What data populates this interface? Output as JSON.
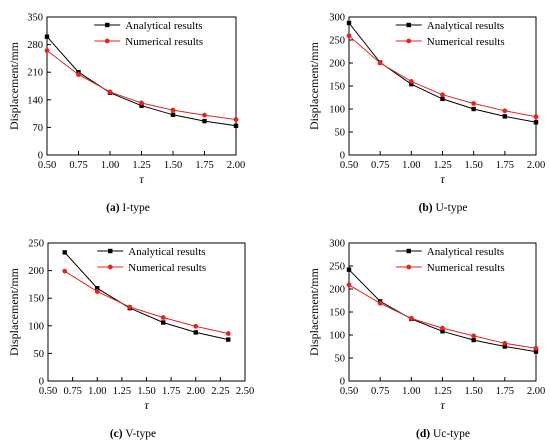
{
  "colors": {
    "analytical": "#000000",
    "numerical": "#e8231e"
  },
  "chart_data": [
    {
      "type": "line",
      "caption_letter": "(a)",
      "caption_text": " I-type",
      "xlabel": "τ",
      "ylabel": "Displacement/mm",
      "xlim": [
        0.5,
        2.0
      ],
      "ylim": [
        0,
        350
      ],
      "xticks": [
        "0.50",
        "0.75",
        "1.00",
        "1.25",
        "1.50",
        "1.75",
        "2.00"
      ],
      "yticks": [
        "0",
        "70",
        "140",
        "210",
        "280",
        "350"
      ],
      "x": [
        0.5,
        0.75,
        1.0,
        1.25,
        1.5,
        1.75,
        2.0
      ],
      "series": [
        {
          "name": "Analytical results",
          "values": [
            300,
            210,
            158,
            125,
            102,
            86,
            74
          ]
        },
        {
          "name": "Numerical results",
          "values": [
            265,
            204,
            160,
            132,
            114,
            101,
            90
          ]
        }
      ],
      "legend": "top-right"
    },
    {
      "type": "line",
      "caption_letter": "(b)",
      "caption_text": " U-type",
      "xlabel": "τ",
      "ylabel": "Displacement/mm",
      "xlim": [
        0.5,
        2.0
      ],
      "ylim": [
        0,
        300
      ],
      "xticks": [
        "0.50",
        "0.75",
        "1.00",
        "1.25",
        "1.50",
        "1.75",
        "2.00"
      ],
      "yticks": [
        "0",
        "50",
        "100",
        "150",
        "200",
        "250",
        "300"
      ],
      "x": [
        0.5,
        0.75,
        1.0,
        1.25,
        1.5,
        1.75,
        2.0
      ],
      "series": [
        {
          "name": "Analytical results",
          "values": [
            287,
            201,
            154,
            122,
            100,
            84,
            71
          ]
        },
        {
          "name": "Numerical results",
          "values": [
            259,
            200,
            160,
            131,
            112,
            96,
            83
          ]
        }
      ],
      "legend": "top-right"
    },
    {
      "type": "line",
      "caption_letter": "(c)",
      "caption_text": " V-type",
      "xlabel": "τ",
      "ylabel": "Displacement/mm",
      "xlim": [
        0.5,
        2.5
      ],
      "ylim": [
        0,
        250
      ],
      "xticks": [
        "0.50",
        "0.75",
        "1.00",
        "1.25",
        "1.50",
        "1.75",
        "2.00",
        "2.25",
        "2.50"
      ],
      "yticks": [
        "0",
        "50",
        "100",
        "150",
        "200",
        "250"
      ],
      "x": [
        0.67,
        1.0,
        1.33,
        1.67,
        2.0,
        2.33
      ],
      "series": [
        {
          "name": "Analytical results",
          "values": [
            233,
            168,
            132,
            106,
            88,
            75
          ]
        },
        {
          "name": "Numerical results",
          "values": [
            199,
            162,
            134,
            115,
            99,
            86
          ]
        }
      ],
      "legend": "top-right"
    },
    {
      "type": "line",
      "caption_letter": "(d)",
      "caption_text": " Uc-type",
      "xlabel": "τ",
      "ylabel": "Displacement/mm",
      "xlim": [
        0.5,
        2.0
      ],
      "ylim": [
        0,
        300
      ],
      "xticks": [
        "0.50",
        "0.75",
        "1.00",
        "1.25",
        "1.50",
        "1.75",
        "2.00"
      ],
      "yticks": [
        "0",
        "50",
        "100",
        "150",
        "200",
        "250",
        "300"
      ],
      "x": [
        0.5,
        0.75,
        1.0,
        1.25,
        1.5,
        1.75,
        2.0
      ],
      "series": [
        {
          "name": "Analytical results",
          "values": [
            242,
            173,
            135,
            108,
            89,
            75,
            64
          ]
        },
        {
          "name": "Numerical results",
          "values": [
            209,
            169,
            136,
            115,
            98,
            82,
            71
          ]
        }
      ],
      "legend": "top-right"
    }
  ]
}
